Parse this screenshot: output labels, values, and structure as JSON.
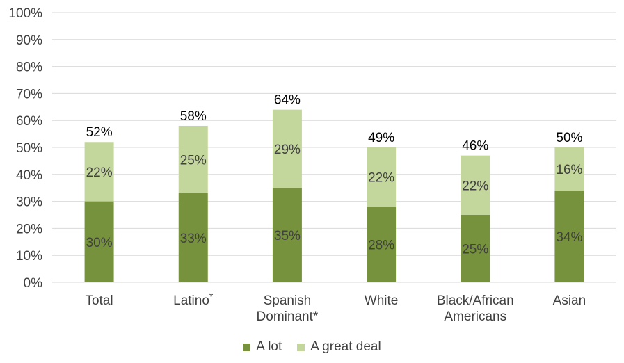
{
  "chart_data": {
    "type": "bar",
    "stacked": true,
    "categories": [
      "Total",
      "Latino*",
      "Spanish Dominant*",
      "White",
      "Black/African Americans",
      "Asian"
    ],
    "category_lines": [
      [
        "Total"
      ],
      [
        "Latino",
        "*"
      ],
      [
        "Spanish",
        "Dominant*"
      ],
      [
        "White"
      ],
      [
        "Black/African",
        "Americans"
      ],
      [
        "Asian"
      ]
    ],
    "series": [
      {
        "name": "A lot",
        "values": [
          30,
          33,
          35,
          28,
          25,
          34
        ],
        "labels": [
          "30%",
          "33%",
          "35%",
          "28%",
          "25%",
          "34%"
        ],
        "color": "#76923c"
      },
      {
        "name": "A great deal",
        "values": [
          22,
          25,
          29,
          22,
          22,
          16
        ],
        "labels": [
          "22%",
          "25%",
          "29%",
          "22%",
          "22%",
          "16%"
        ],
        "color": "#c3d69b"
      }
    ],
    "totals": [
      "52%",
      "58%",
      "64%",
      "49%",
      "46%",
      "50%"
    ],
    "total_values": [
      52,
      58,
      64,
      50,
      47,
      50
    ],
    "y_ticks": [
      "0%",
      "10%",
      "20%",
      "30%",
      "40%",
      "50%",
      "60%",
      "70%",
      "80%",
      "90%",
      "100%"
    ],
    "ylim": [
      0,
      100
    ],
    "grid": true,
    "grid_color": "#d9d9d9",
    "legend_position": "bottom"
  }
}
